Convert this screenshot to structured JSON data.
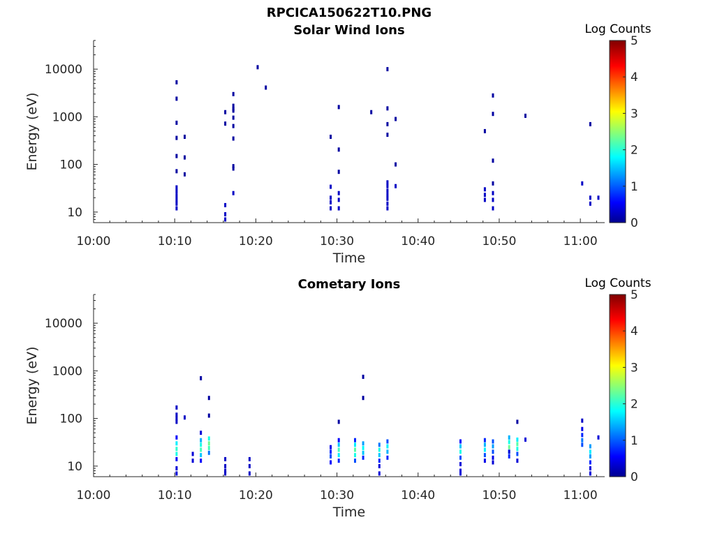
{
  "figure_title": "RPCICA150622T10.PNG",
  "colormap": [
    "#00008f",
    "#0000ff",
    "#0080ff",
    "#00ffff",
    "#80ff80",
    "#ffff00",
    "#ff8000",
    "#ff0000",
    "#800000"
  ],
  "chart_data": [
    {
      "type": "heatmap",
      "title": "Solar Wind Ions",
      "xlabel": "Time",
      "ylabel": "Energy (eV)",
      "x_ticks": [
        "10:00",
        "10:10",
        "10:20",
        "10:30",
        "10:40",
        "10:50",
        "11:00"
      ],
      "y_ticks": [
        "10",
        "100",
        "1000",
        "10000"
      ],
      "xlim": [
        "10:00",
        "11:03"
      ],
      "ylim": [
        6,
        40000
      ],
      "y_scale": "log",
      "colorbar": {
        "label": "Log Counts",
        "range": [
          0,
          5
        ],
        "ticks": [
          "0",
          "1",
          "2",
          "3",
          "4",
          "5"
        ]
      },
      "points": [
        {
          "t": "10:10",
          "e": 5300,
          "c": 0.1
        },
        {
          "t": "10:10",
          "e": 2400,
          "c": 0.1
        },
        {
          "t": "10:10",
          "e": 750,
          "c": 0.1
        },
        {
          "t": "10:10",
          "e": 360,
          "c": 0.1
        },
        {
          "t": "10:11",
          "e": 380,
          "c": 0.1
        },
        {
          "t": "10:10",
          "e": 150,
          "c": 0.1
        },
        {
          "t": "10:11",
          "e": 140,
          "c": 0.1
        },
        {
          "t": "10:10",
          "e": 72,
          "c": 0.1
        },
        {
          "t": "10:11",
          "e": 62,
          "c": 0.1
        },
        {
          "t": "10:10",
          "e": 33,
          "c": 0.3
        },
        {
          "t": "10:10",
          "e": 27,
          "c": 0.3
        },
        {
          "t": "10:10",
          "e": 22,
          "c": 0.3
        },
        {
          "t": "10:10",
          "e": 18,
          "c": 0.3
        },
        {
          "t": "10:10",
          "e": 15,
          "c": 0.3
        },
        {
          "t": "10:10",
          "e": 12,
          "c": 0.3
        },
        {
          "t": "10:17",
          "e": 3000,
          "c": 0.1
        },
        {
          "t": "10:17",
          "e": 1700,
          "c": 0.1
        },
        {
          "t": "10:17",
          "e": 1450,
          "c": 0.1
        },
        {
          "t": "10:17",
          "e": 1350,
          "c": 0.1
        },
        {
          "t": "10:16",
          "e": 1250,
          "c": 0.1
        },
        {
          "t": "10:17",
          "e": 960,
          "c": 0.1
        },
        {
          "t": "10:16",
          "e": 720,
          "c": 0.1
        },
        {
          "t": "10:17",
          "e": 640,
          "c": 0.1
        },
        {
          "t": "10:17",
          "e": 350,
          "c": 0.1
        },
        {
          "t": "10:17",
          "e": 92,
          "c": 0.1
        },
        {
          "t": "10:17",
          "e": 82,
          "c": 0.1
        },
        {
          "t": "10:17",
          "e": 25,
          "c": 0.3
        },
        {
          "t": "10:16",
          "e": 14,
          "c": 0.3
        },
        {
          "t": "10:16",
          "e": 9,
          "c": 0.3
        },
        {
          "t": "10:16",
          "e": 7,
          "c": 0.3
        },
        {
          "t": "10:20",
          "e": 11000,
          "c": 0.1
        },
        {
          "t": "10:21",
          "e": 4100,
          "c": 0.1
        },
        {
          "t": "10:30",
          "e": 1600,
          "c": 0.1
        },
        {
          "t": "10:29",
          "e": 380,
          "c": 0.1
        },
        {
          "t": "10:30",
          "e": 205,
          "c": 0.1
        },
        {
          "t": "10:30",
          "e": 70,
          "c": 0.1
        },
        {
          "t": "10:29",
          "e": 34,
          "c": 0.3
        },
        {
          "t": "10:29",
          "e": 20,
          "c": 0.3
        },
        {
          "t": "10:29",
          "e": 16,
          "c": 0.3
        },
        {
          "t": "10:29",
          "e": 12,
          "c": 0.3
        },
        {
          "t": "10:30",
          "e": 25,
          "c": 0.3
        },
        {
          "t": "10:30",
          "e": 18,
          "c": 0.3
        },
        {
          "t": "10:30",
          "e": 12,
          "c": 0.3
        },
        {
          "t": "10:34",
          "e": 1250,
          "c": 0.1
        },
        {
          "t": "10:36",
          "e": 10000,
          "c": 0.1
        },
        {
          "t": "10:36",
          "e": 420,
          "c": 0.1
        },
        {
          "t": "10:36",
          "e": 1500,
          "c": 0.1
        },
        {
          "t": "10:37",
          "e": 900,
          "c": 0.1
        },
        {
          "t": "10:36",
          "e": 700,
          "c": 0.1
        },
        {
          "t": "10:37",
          "e": 100,
          "c": 0.1
        },
        {
          "t": "10:36",
          "e": 42,
          "c": 0.3
        },
        {
          "t": "10:36",
          "e": 35,
          "c": 0.3
        },
        {
          "t": "10:36",
          "e": 28,
          "c": 0.3
        },
        {
          "t": "10:36",
          "e": 23,
          "c": 0.3
        },
        {
          "t": "10:36",
          "e": 19,
          "c": 0.3
        },
        {
          "t": "10:36",
          "e": 15,
          "c": 0.3
        },
        {
          "t": "10:36",
          "e": 12,
          "c": 0.3
        },
        {
          "t": "10:37",
          "e": 35,
          "c": 0.3
        },
        {
          "t": "10:48",
          "e": 30,
          "c": 0.3
        },
        {
          "t": "10:48",
          "e": 23,
          "c": 0.3
        },
        {
          "t": "10:48",
          "e": 18,
          "c": 0.3
        },
        {
          "t": "10:49",
          "e": 25,
          "c": 0.3
        },
        {
          "t": "10:49",
          "e": 18,
          "c": 0.3
        },
        {
          "t": "10:49",
          "e": 12,
          "c": 0.3
        },
        {
          "t": "10:49",
          "e": 40,
          "c": 0.1
        },
        {
          "t": "10:48",
          "e": 500,
          "c": 0.1
        },
        {
          "t": "10:49",
          "e": 1150,
          "c": 0.1
        },
        {
          "t": "10:49",
          "e": 120,
          "c": 0.1
        },
        {
          "t": "10:49",
          "e": 2800,
          "c": 0.1
        },
        {
          "t": "10:53",
          "e": 1050,
          "c": 0.1
        },
        {
          "t": "11:00",
          "e": 40,
          "c": 0.3
        },
        {
          "t": "11:01",
          "e": 700,
          "c": 0.1
        },
        {
          "t": "11:01",
          "e": 20,
          "c": 0.3
        },
        {
          "t": "11:01",
          "e": 15,
          "c": 0.3
        },
        {
          "t": "11:02",
          "e": 20,
          "c": 0.3
        }
      ]
    },
    {
      "type": "heatmap",
      "title": "Cometary Ions",
      "xlabel": "Time",
      "ylabel": "Energy (eV)",
      "x_ticks": [
        "10:00",
        "10:10",
        "10:20",
        "10:30",
        "10:40",
        "10:50",
        "11:00"
      ],
      "y_ticks": [
        "10",
        "100",
        "1000",
        "10000"
      ],
      "xlim": [
        "10:00",
        "11:03"
      ],
      "ylim": [
        6,
        40000
      ],
      "y_scale": "log",
      "colorbar": {
        "label": "Log Counts",
        "range": [
          0,
          5
        ],
        "ticks": [
          "0",
          "1",
          "2",
          "3",
          "4",
          "5"
        ]
      },
      "points": [
        {
          "t": "10:10",
          "e": 170,
          "c": 0.3
        },
        {
          "t": "10:10",
          "e": 120,
          "c": 0.3
        },
        {
          "t": "10:10",
          "e": 100,
          "c": 0.3
        },
        {
          "t": "10:10",
          "e": 85,
          "c": 0.3
        },
        {
          "t": "10:10",
          "e": 40,
          "c": 0.6
        },
        {
          "t": "10:10",
          "e": 30,
          "c": 1.8
        },
        {
          "t": "10:10",
          "e": 23,
          "c": 2.1
        },
        {
          "t": "10:10",
          "e": 18,
          "c": 2.0
        },
        {
          "t": "10:10",
          "e": 14,
          "c": 0.6
        },
        {
          "t": "10:10",
          "e": 9,
          "c": 0.4
        },
        {
          "t": "10:10",
          "e": 7,
          "c": 0.4
        },
        {
          "t": "10:11",
          "e": 105,
          "c": 0.3
        },
        {
          "t": "10:13",
          "e": 700,
          "c": 0.1
        },
        {
          "t": "10:14",
          "e": 270,
          "c": 0.1
        },
        {
          "t": "10:14",
          "e": 115,
          "c": 0.1
        },
        {
          "t": "10:13",
          "e": 50,
          "c": 0.4
        },
        {
          "t": "10:13",
          "e": 35,
          "c": 1.5
        },
        {
          "t": "10:13",
          "e": 28,
          "c": 2.0
        },
        {
          "t": "10:13",
          "e": 22,
          "c": 2.2
        },
        {
          "t": "10:13",
          "e": 17,
          "c": 1.6
        },
        {
          "t": "10:13",
          "e": 13,
          "c": 0.6
        },
        {
          "t": "10:14",
          "e": 38,
          "c": 2.0
        },
        {
          "t": "10:14",
          "e": 30,
          "c": 2.4
        },
        {
          "t": "10:14",
          "e": 24,
          "c": 2.2
        },
        {
          "t": "10:14",
          "e": 19,
          "c": 1.2
        },
        {
          "t": "10:12",
          "e": 18,
          "c": 0.4
        },
        {
          "t": "10:12",
          "e": 13,
          "c": 0.4
        },
        {
          "t": "10:16",
          "e": 14,
          "c": 0.3
        },
        {
          "t": "10:16",
          "e": 10,
          "c": 0.3
        },
        {
          "t": "10:16",
          "e": 8,
          "c": 0.3
        },
        {
          "t": "10:16",
          "e": 7,
          "c": 0.3
        },
        {
          "t": "10:19",
          "e": 14,
          "c": 0.3
        },
        {
          "t": "10:19",
          "e": 10,
          "c": 0.3
        },
        {
          "t": "10:19",
          "e": 7,
          "c": 0.3
        },
        {
          "t": "10:29",
          "e": 25,
          "c": 0.5
        },
        {
          "t": "10:29",
          "e": 20,
          "c": 0.8
        },
        {
          "t": "10:29",
          "e": 16,
          "c": 1.0
        },
        {
          "t": "10:29",
          "e": 12,
          "c": 0.6
        },
        {
          "t": "10:30",
          "e": 35,
          "c": 0.6
        },
        {
          "t": "10:30",
          "e": 28,
          "c": 1.6
        },
        {
          "t": "10:30",
          "e": 22,
          "c": 2.2
        },
        {
          "t": "10:30",
          "e": 17,
          "c": 1.8
        },
        {
          "t": "10:30",
          "e": 13,
          "c": 0.8
        },
        {
          "t": "10:30",
          "e": 85,
          "c": 0.1
        },
        {
          "t": "10:32",
          "e": 35,
          "c": 0.8
        },
        {
          "t": "10:32",
          "e": 28,
          "c": 1.8
        },
        {
          "t": "10:32",
          "e": 22,
          "c": 2.3
        },
        {
          "t": "10:32",
          "e": 17,
          "c": 2.0
        },
        {
          "t": "10:32",
          "e": 13,
          "c": 1.0
        },
        {
          "t": "10:33",
          "e": 30,
          "c": 1.4
        },
        {
          "t": "10:33",
          "e": 24,
          "c": 1.9
        },
        {
          "t": "10:33",
          "e": 19,
          "c": 1.6
        },
        {
          "t": "10:33",
          "e": 15,
          "c": 0.8
        },
        {
          "t": "10:33",
          "e": 750,
          "c": 0.1
        },
        {
          "t": "10:33",
          "e": 270,
          "c": 0.1
        },
        {
          "t": "10:35",
          "e": 28,
          "c": 1.2
        },
        {
          "t": "10:35",
          "e": 22,
          "c": 2.0
        },
        {
          "t": "10:35",
          "e": 17,
          "c": 1.6
        },
        {
          "t": "10:35",
          "e": 13,
          "c": 0.8
        },
        {
          "t": "10:35",
          "e": 10,
          "c": 0.4
        },
        {
          "t": "10:35",
          "e": 7,
          "c": 0.4
        },
        {
          "t": "10:36",
          "e": 33,
          "c": 1.0
        },
        {
          "t": "10:36",
          "e": 26,
          "c": 1.8
        },
        {
          "t": "10:36",
          "e": 20,
          "c": 1.5
        },
        {
          "t": "10:36",
          "e": 15,
          "c": 0.8
        },
        {
          "t": "10:45",
          "e": 33,
          "c": 0.6
        },
        {
          "t": "10:45",
          "e": 26,
          "c": 1.6
        },
        {
          "t": "10:45",
          "e": 20,
          "c": 2.0
        },
        {
          "t": "10:45",
          "e": 15,
          "c": 1.0
        },
        {
          "t": "10:45",
          "e": 11,
          "c": 0.4
        },
        {
          "t": "10:45",
          "e": 8,
          "c": 0.4
        },
        {
          "t": "10:45",
          "e": 7,
          "c": 0.4
        },
        {
          "t": "10:48",
          "e": 35,
          "c": 0.8
        },
        {
          "t": "10:48",
          "e": 28,
          "c": 1.5
        },
        {
          "t": "10:48",
          "e": 22,
          "c": 1.8
        },
        {
          "t": "10:48",
          "e": 17,
          "c": 1.0
        },
        {
          "t": "10:48",
          "e": 13,
          "c": 0.5
        },
        {
          "t": "10:49",
          "e": 33,
          "c": 1.0
        },
        {
          "t": "10:49",
          "e": 26,
          "c": 1.4
        },
        {
          "t": "10:49",
          "e": 20,
          "c": 1.0
        },
        {
          "t": "10:49",
          "e": 15,
          "c": 0.5
        },
        {
          "t": "10:49",
          "e": 12,
          "c": 0.4
        },
        {
          "t": "10:51",
          "e": 40,
          "c": 1.5
        },
        {
          "t": "10:51",
          "e": 32,
          "c": 2.0
        },
        {
          "t": "10:51",
          "e": 25,
          "c": 2.4
        },
        {
          "t": "10:51",
          "e": 20,
          "c": 1.8
        },
        {
          "t": "10:51",
          "e": 16,
          "c": 0.8
        },
        {
          "t": "10:52",
          "e": 36,
          "c": 1.8
        },
        {
          "t": "10:52",
          "e": 29,
          "c": 2.3
        },
        {
          "t": "10:52",
          "e": 23,
          "c": 2.0
        },
        {
          "t": "10:52",
          "e": 18,
          "c": 1.0
        },
        {
          "t": "10:52",
          "e": 13,
          "c": 0.4
        },
        {
          "t": "10:53",
          "e": 36,
          "c": 0.4
        },
        {
          "t": "10:52",
          "e": 85,
          "c": 0.1
        },
        {
          "t": "10:51",
          "e": 20,
          "c": 0.4
        },
        {
          "t": "11:00",
          "e": 90,
          "c": 0.3
        },
        {
          "t": "11:00",
          "e": 60,
          "c": 0.5
        },
        {
          "t": "11:00",
          "e": 45,
          "c": 0.8
        },
        {
          "t": "11:00",
          "e": 35,
          "c": 1.2
        },
        {
          "t": "11:00",
          "e": 28,
          "c": 1.0
        },
        {
          "t": "11:01",
          "e": 26,
          "c": 1.4
        },
        {
          "t": "11:01",
          "e": 20,
          "c": 1.8
        },
        {
          "t": "11:01",
          "e": 16,
          "c": 1.4
        },
        {
          "t": "11:01",
          "e": 12,
          "c": 0.8
        },
        {
          "t": "11:01",
          "e": 9,
          "c": 0.4
        },
        {
          "t": "11:02",
          "e": 40,
          "c": 0.4
        },
        {
          "t": "11:01",
          "e": 7,
          "c": 0.4
        }
      ]
    }
  ]
}
